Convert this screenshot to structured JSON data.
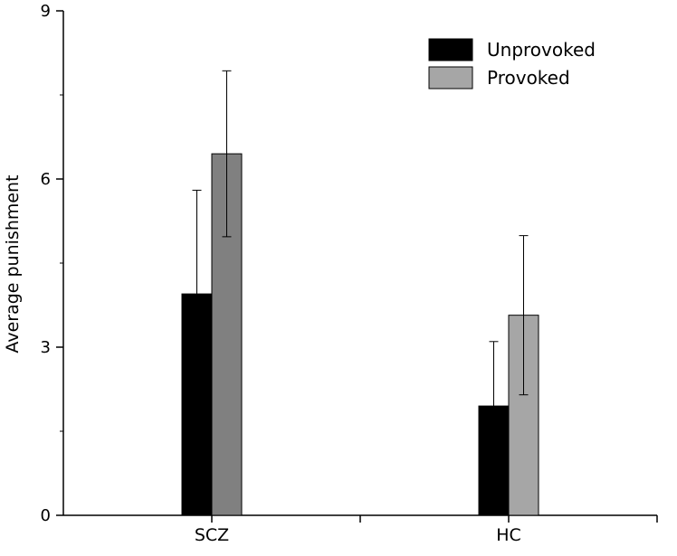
{
  "chart_data": {
    "type": "bar",
    "title": "",
    "xlabel": "",
    "ylabel": "Average punishment",
    "ylim": [
      0,
      9
    ],
    "yticks": [
      0,
      3,
      6,
      9
    ],
    "categories": [
      "SCZ",
      "HC"
    ],
    "series": [
      {
        "name": "Unprovoked",
        "values": [
          3.95,
          1.95
        ],
        "error_plus": [
          1.85,
          1.15
        ],
        "colors": [
          "#000000",
          "#000000"
        ]
      },
      {
        "name": "Provoked",
        "values": [
          6.45,
          3.57
        ],
        "error_plus": [
          1.48,
          1.42
        ],
        "error_minus": [
          1.48,
          1.42
        ],
        "colors": [
          "#808080",
          "#a6a6a6"
        ]
      }
    ],
    "legend": {
      "position": "top-right",
      "entries": [
        {
          "label": "Unprovoked",
          "color": "#000000"
        },
        {
          "label": "Provoked",
          "color": "#a6a6a6"
        }
      ]
    },
    "grid": false
  }
}
